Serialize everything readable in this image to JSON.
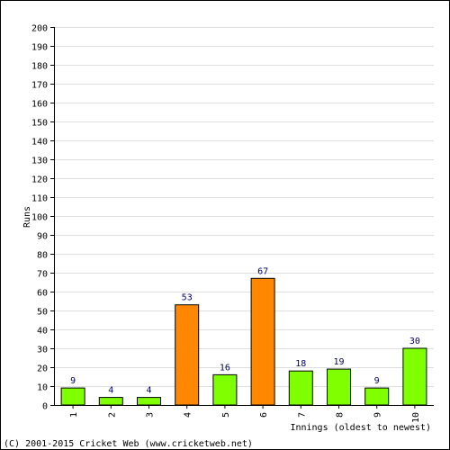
{
  "chart_data": {
    "type": "bar",
    "categories": [
      "1",
      "2",
      "3",
      "4",
      "5",
      "6",
      "7",
      "8",
      "9",
      "10"
    ],
    "values": [
      9,
      4,
      4,
      53,
      16,
      67,
      18,
      19,
      9,
      30
    ],
    "highlight": [
      false,
      false,
      false,
      true,
      false,
      true,
      false,
      false,
      false,
      false
    ],
    "title": "",
    "xlabel": "Innings (oldest to newest)",
    "ylabel": "Runs",
    "ylim": [
      0,
      200
    ],
    "ytick_step": 10,
    "grid": true,
    "colors": {
      "bar_normal": "#80ff00",
      "bar_highlight": "#ff8800",
      "label": "#000066",
      "grid": "#dddddd",
      "axis": "#000000"
    }
  },
  "footer": {
    "copyright": "(C) 2001-2015 Cricket Web (www.cricketweb.net)"
  }
}
